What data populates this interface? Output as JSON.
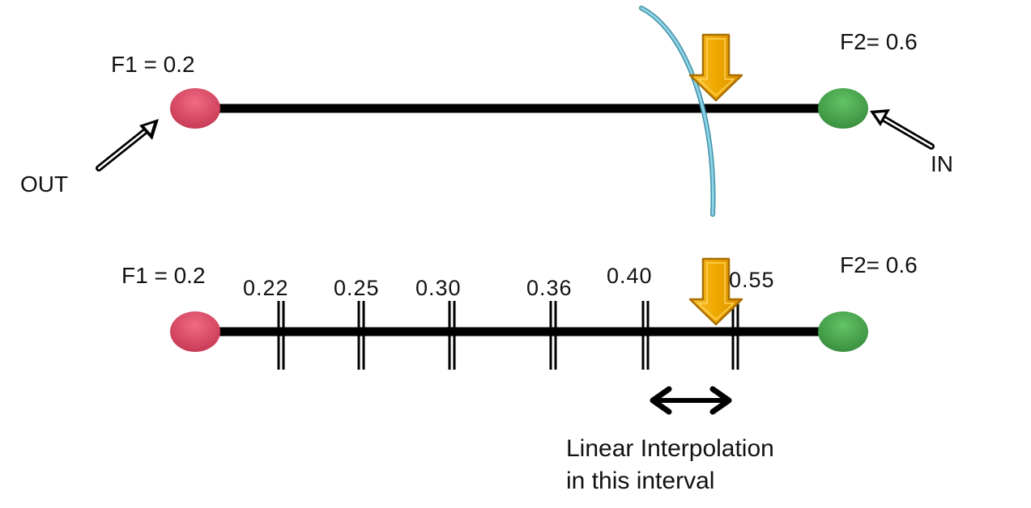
{
  "top_line": {
    "left_label": "F1 = 0.2",
    "right_label": "F2= 0.6",
    "out_label": "OUT",
    "in_label": "IN"
  },
  "bottom_line": {
    "left_label": "F1 = 0.2",
    "right_label": "F2= 0.6",
    "ticks": [
      "0.22",
      "0.25",
      "0.30",
      "0.36",
      "0.40",
      "0.55"
    ]
  },
  "annotation": {
    "line1": "Linear Interpolation",
    "line2": "in this interval"
  },
  "colors": {
    "out_node": "#e0506a",
    "in_node": "#4caf50",
    "arrow_fill": "#f0a800",
    "arrow_stroke": "#a86f00",
    "curve": "#6fb8cf",
    "line": "#000000"
  }
}
